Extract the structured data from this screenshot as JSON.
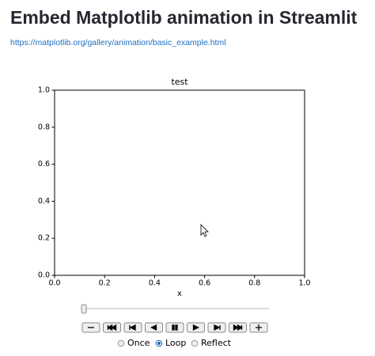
{
  "header": {
    "title": "Embed Matplotlib animation in Streamlit",
    "link": "https://matplotlib.org/gallery/animation/basic_example.html"
  },
  "chart_data": {
    "type": "line",
    "title": "test",
    "x_label": "x",
    "xlim": [
      0,
      1
    ],
    "ylim": [
      0,
      1
    ],
    "xticks": [
      {
        "value": 0,
        "label": "0.0"
      },
      0.2,
      0.4,
      0.6,
      0.8,
      {
        "value": 1,
        "label": "1.0"
      }
    ],
    "yticks": [
      {
        "value": 0,
        "label": "0.0"
      },
      0.2,
      0.4,
      0.6,
      0.8,
      {
        "value": 1,
        "label": "1.0"
      }
    ]
  },
  "player": {
    "modes": [
      "Once",
      "Loop",
      "Reflect"
    ],
    "selected": 1
  }
}
